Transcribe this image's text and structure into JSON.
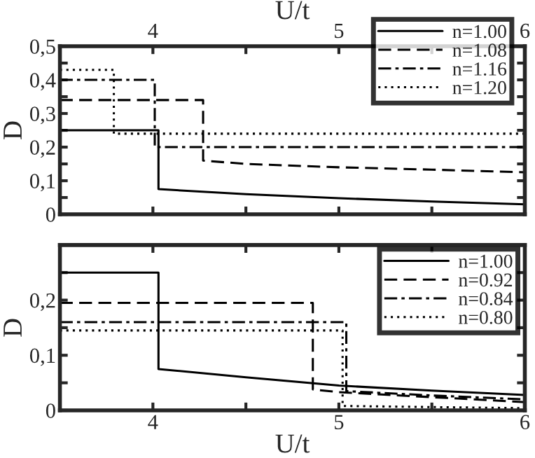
{
  "chart_data": [
    {
      "type": "line",
      "xlabel": "U/t",
      "ylabel": "D",
      "xlim": [
        3.5,
        6
      ],
      "xticks": [
        {
          "value": 4,
          "label": "4"
        },
        {
          "value": 4.5,
          "label": null
        },
        {
          "value": 5,
          "label": "5"
        },
        {
          "value": 5.5,
          "label": null
        },
        {
          "value": 6,
          "label": "6"
        }
      ],
      "ylim": [
        0,
        0.5
      ],
      "yticks": [
        {
          "value": 0,
          "label": "0"
        },
        {
          "value": 0.05,
          "label": null
        },
        {
          "value": 0.1,
          "label": "0,1"
        },
        {
          "value": 0.15,
          "label": null
        },
        {
          "value": 0.2,
          "label": "0,2"
        },
        {
          "value": 0.25,
          "label": null
        },
        {
          "value": 0.3,
          "label": "0,3"
        },
        {
          "value": 0.35,
          "label": null
        },
        {
          "value": 0.4,
          "label": "0,4"
        },
        {
          "value": 0.45,
          "label": null
        },
        {
          "value": 0.5,
          "label": "0,5"
        }
      ],
      "legend": "top right",
      "grid": false,
      "marker": "none",
      "series": [
        {
          "name": "n=1.00",
          "color": "#000000",
          "line_style": "solid",
          "x": [
            3.5,
            4.03,
            4.03,
            4.5,
            5,
            5.5,
            6
          ],
          "values": [
            0.25,
            0.25,
            0.075,
            0.06,
            0.048,
            0.038,
            0.03
          ]
        },
        {
          "name": "n=1.08",
          "color": "#000000",
          "line_style": "dashed",
          "x": [
            3.5,
            4.27,
            4.27,
            4.5,
            5,
            5.5,
            6
          ],
          "values": [
            0.34,
            0.34,
            0.16,
            0.15,
            0.14,
            0.133,
            0.125
          ]
        },
        {
          "name": "n=1.16",
          "color": "#000000",
          "line_style": "dashdot",
          "x": [
            3.5,
            4.01,
            4.01,
            6
          ],
          "values": [
            0.4,
            0.4,
            0.2,
            0.2
          ]
        },
        {
          "name": "n=1.20",
          "color": "#000000",
          "line_style": "dotted",
          "x": [
            3.5,
            3.79,
            3.79,
            6
          ],
          "values": [
            0.43,
            0.43,
            0.24,
            0.24
          ]
        }
      ]
    },
    {
      "type": "line",
      "xlabel": "U/t",
      "ylabel": "D",
      "xlim": [
        3.5,
        6
      ],
      "xticks": [
        {
          "value": 4,
          "label": "4"
        },
        {
          "value": 4.5,
          "label": null
        },
        {
          "value": 5,
          "label": "5"
        },
        {
          "value": 5.5,
          "label": null
        },
        {
          "value": 6,
          "label": "6"
        }
      ],
      "ylim": [
        0,
        0.3
      ],
      "yticks": [
        {
          "value": 0,
          "label": "0"
        },
        {
          "value": 0.05,
          "label": null
        },
        {
          "value": 0.1,
          "label": "0,1"
        },
        {
          "value": 0.15,
          "label": null
        },
        {
          "value": 0.2,
          "label": "0,2"
        },
        {
          "value": 0.25,
          "label": null
        },
        {
          "value": 0.3,
          "label": null
        }
      ],
      "legend": "top right",
      "grid": false,
      "marker": "none",
      "series": [
        {
          "name": "n=1.00",
          "color": "#000000",
          "line_style": "solid",
          "x": [
            3.5,
            4.03,
            4.03,
            4.5,
            5,
            5.5,
            6
          ],
          "values": [
            0.25,
            0.25,
            0.075,
            0.06,
            0.045,
            0.036,
            0.028
          ]
        },
        {
          "name": "n=0.92",
          "color": "#000000",
          "line_style": "dashed",
          "x": [
            3.5,
            4.86,
            4.86,
            5,
            5.5,
            6
          ],
          "values": [
            0.195,
            0.195,
            0.038,
            0.033,
            0.024,
            0.015
          ]
        },
        {
          "name": "n=0.84",
          "color": "#000000",
          "line_style": "dashdot",
          "x": [
            3.5,
            5.04,
            5.04,
            5.5,
            6
          ],
          "values": [
            0.16,
            0.16,
            0.035,
            0.027,
            0.02
          ]
        },
        {
          "name": "n=0.80",
          "color": "#000000",
          "line_style": "dotted",
          "x": [
            3.5,
            5.02,
            5.02,
            5.5,
            6
          ],
          "values": [
            0.145,
            0.145,
            0.008,
            0.006,
            0.004
          ]
        }
      ]
    }
  ]
}
